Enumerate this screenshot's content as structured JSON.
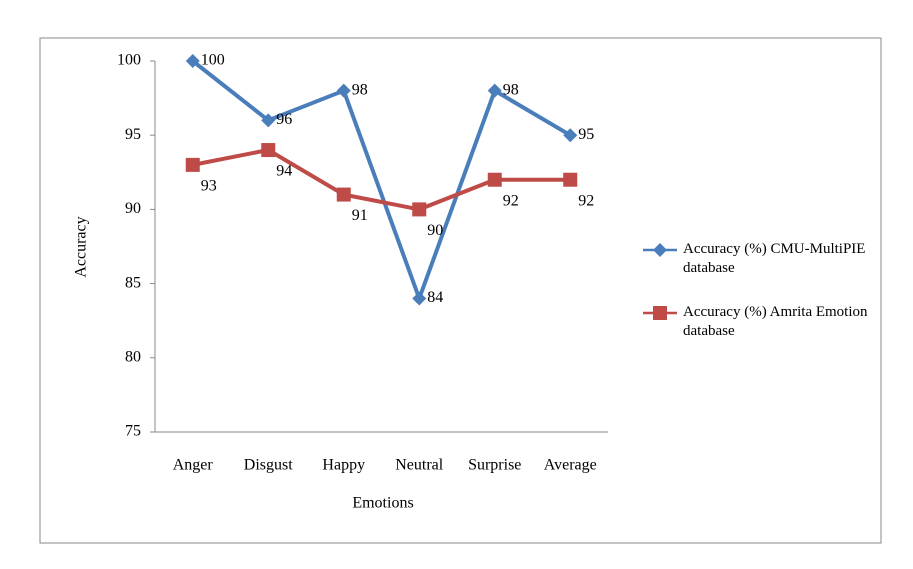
{
  "chart_data": {
    "type": "line",
    "x_label": "Emotions",
    "y_label": "Accuracy",
    "categories": [
      "Anger",
      "Disgust",
      "Happy",
      "Neutral",
      "Surprise",
      "Average"
    ],
    "series": [
      {
        "name": "Accuracy (%) CMU-MultiPIE database",
        "color": "#4a7ebb",
        "marker": "diamond",
        "values": [
          100,
          96,
          98,
          84,
          98,
          95
        ]
      },
      {
        "name": "Accuracy (%) Amrita Emotion database",
        "color": "#be4b48",
        "marker": "square",
        "values": [
          93,
          94,
          91,
          90,
          92,
          92
        ]
      }
    ],
    "ylim": [
      75,
      100
    ],
    "yticks": [
      75,
      80,
      85,
      90,
      95,
      100
    ],
    "grid": false,
    "legend": "right",
    "data_labels": true
  }
}
